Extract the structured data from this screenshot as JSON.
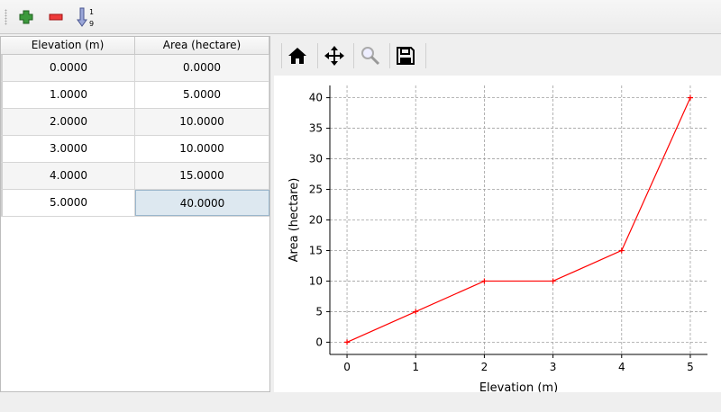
{
  "toolbar": {
    "add_icon": "plus-icon",
    "remove_icon": "minus-icon",
    "sort_icon": "sort-ascending-icon"
  },
  "table": {
    "headers": [
      "Elevation (m)",
      "Area (hectare)"
    ],
    "rows": [
      [
        "0.0000",
        "0.0000"
      ],
      [
        "1.0000",
        "5.0000"
      ],
      [
        "2.0000",
        "10.0000"
      ],
      [
        "3.0000",
        "10.0000"
      ],
      [
        "4.0000",
        "15.0000"
      ],
      [
        "5.0000",
        "40.0000"
      ]
    ],
    "selected_cell": [
      5,
      1
    ]
  },
  "plot_toolbar": {
    "icons": [
      "home-icon",
      "pan-icon",
      "zoom-icon",
      "save-icon"
    ]
  },
  "chart_data": {
    "type": "line",
    "x": [
      0,
      1,
      2,
      3,
      4,
      5
    ],
    "series": [
      {
        "values": [
          0,
          5,
          10,
          10,
          15,
          40
        ],
        "color": "#ff0000",
        "marker": "+"
      }
    ],
    "xlabel": "Elevation (m)",
    "ylabel": "Area (hectare)",
    "xlim": [
      -0.25,
      5.25
    ],
    "ylim": [
      -2,
      42
    ],
    "xticks": [
      0,
      1,
      2,
      3,
      4,
      5
    ],
    "yticks": [
      0,
      5,
      10,
      15,
      20,
      25,
      30,
      35,
      40
    ],
    "grid": true
  }
}
